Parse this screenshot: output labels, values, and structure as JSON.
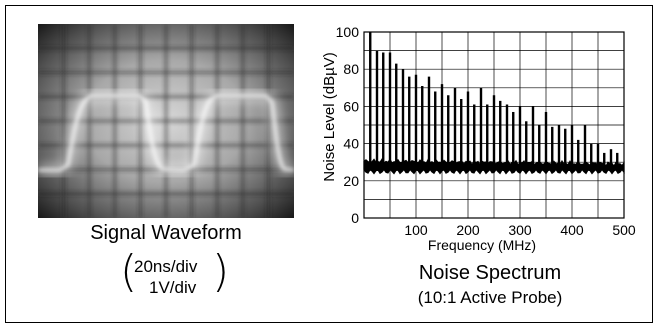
{
  "waveform": {
    "caption": "Signal Waveform",
    "time_scale": "20ns/div",
    "volt_scale": "1V/div"
  },
  "spectrum": {
    "caption": "Noise Spectrum",
    "subcaption": "(10:1 Active Probe)"
  },
  "chart_data": {
    "type": "bar",
    "xlabel": "Frequency (MHz)",
    "ylabel": "Noise Level (dBµV)",
    "xlim": [
      0,
      500
    ],
    "ylim": [
      0,
      100
    ],
    "xticks": [
      100,
      200,
      300,
      400,
      500
    ],
    "yticks": [
      0,
      20,
      40,
      60,
      80,
      100
    ],
    "grid": true,
    "series": [
      {
        "x": [
          12,
          25,
          37,
          50,
          62,
          75,
          87,
          100,
          112,
          125,
          137,
          150,
          162,
          175,
          187,
          200,
          212,
          225,
          237,
          250,
          262,
          275,
          287,
          300,
          312,
          325,
          337,
          350,
          362,
          375,
          387,
          400,
          412,
          425,
          437,
          450,
          462,
          475,
          487
        ],
        "values": [
          100,
          90,
          89,
          89,
          83,
          80,
          76,
          77,
          71,
          76,
          68,
          72,
          66,
          70,
          64,
          68,
          61,
          70,
          61,
          66,
          63,
          61,
          57,
          60,
          52,
          60,
          50,
          57,
          49,
          50,
          48,
          50,
          42,
          50,
          40,
          40,
          35,
          37,
          35
        ]
      }
    ],
    "noise_floor_band": [
      26,
      31
    ]
  }
}
